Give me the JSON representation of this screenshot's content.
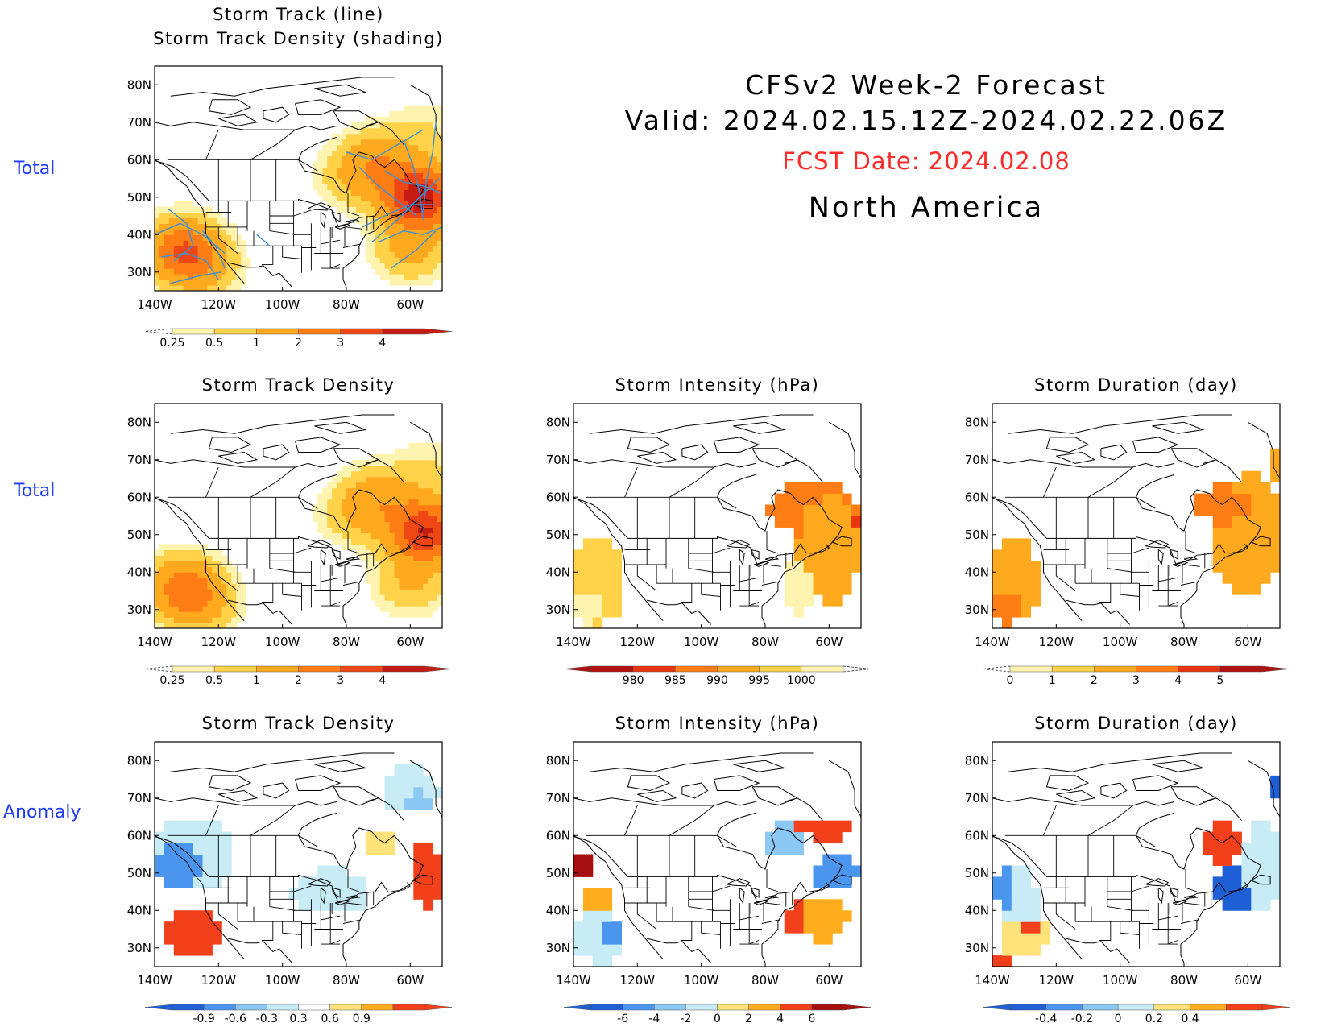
{
  "header": {
    "line1": "CFSv2 Week-2 Forecast",
    "line2": "Valid: 2024.02.15.12Z-2024.02.22.06Z",
    "fcst_date": "FCST Date: 2024.02.08",
    "region": "North America"
  },
  "row_labels": [
    "Total",
    "Total",
    "Anomaly"
  ],
  "colors": {
    "row_label": "#1f3cff",
    "fcst_date": "#ff2a2a",
    "storm_track_line": "#3a8fd6"
  },
  "chart_data": [
    {
      "type": "heatmap",
      "id": "track-total",
      "title": [
        "Storm Track (line)",
        "Storm Track Density (shading)"
      ],
      "xticks": [
        "140W",
        "120W",
        "100W",
        "80W",
        "60W"
      ],
      "yticks": [
        "30N",
        "40N",
        "50N",
        "60N",
        "70N",
        "80N"
      ],
      "xlim": [
        -140,
        -50
      ],
      "ylim": [
        25,
        85
      ],
      "colorbar": {
        "labels": [
          "0.25",
          "0.5",
          "1",
          "2",
          "3",
          "4"
        ],
        "colors": [
          "#fff3b0",
          "#ffd24a",
          "#ffaa1e",
          "#ff7d14",
          "#ee4615",
          "#c41b12"
        ],
        "extend_low": "dashed",
        "extend_high": "triangle"
      },
      "highs": [
        {
          "lon": -57,
          "lat": 50,
          "value": 4.5
        },
        {
          "lon": -70,
          "lat": 60,
          "value": 1.5
        },
        {
          "lon": -78,
          "lat": 55,
          "value": 0.8
        },
        {
          "lon": -131,
          "lat": 36,
          "value": 2.8
        },
        {
          "lon": -125,
          "lat": 31,
          "value": 1.0
        },
        {
          "lon": -60,
          "lat": 36,
          "value": 1.2
        },
        {
          "lon": -55,
          "lat": 68,
          "value": 0.5
        }
      ],
      "tracks": [
        [
          [
            -140,
            40
          ],
          [
            -132,
            43
          ],
          [
            -125,
            40
          ],
          [
            -118,
            35
          ]
        ],
        [
          [
            -138,
            34
          ],
          [
            -130,
            35
          ],
          [
            -124,
            33
          ],
          [
            -120,
            28
          ]
        ],
        [
          [
            -136,
            47
          ],
          [
            -130,
            43
          ],
          [
            -128,
            37
          ],
          [
            -134,
            33
          ]
        ],
        [
          [
            -135,
            27
          ],
          [
            -126,
            29
          ],
          [
            -119,
            30
          ]
        ],
        [
          [
            -125,
            41
          ],
          [
            -121,
            37
          ],
          [
            -118,
            31
          ]
        ],
        [
          [
            -108,
            40
          ],
          [
            -104,
            37
          ]
        ],
        [
          [
            -75,
            42
          ],
          [
            -68,
            45
          ],
          [
            -60,
            48
          ],
          [
            -52,
            48
          ]
        ],
        [
          [
            -72,
            38
          ],
          [
            -64,
            44
          ],
          [
            -57,
            50
          ],
          [
            -51,
            55
          ]
        ],
        [
          [
            -66,
            31
          ],
          [
            -58,
            36
          ],
          [
            -52,
            41
          ]
        ],
        [
          [
            -80,
            62
          ],
          [
            -72,
            60
          ],
          [
            -64,
            64
          ],
          [
            -56,
            68
          ]
        ],
        [
          [
            -68,
            57
          ],
          [
            -62,
            54
          ],
          [
            -56,
            53
          ],
          [
            -50,
            51
          ]
        ],
        [
          [
            -62,
            65
          ],
          [
            -59,
            58
          ],
          [
            -57,
            51
          ],
          [
            -56,
            44
          ]
        ],
        [
          [
            -52,
            70
          ],
          [
            -53,
            62
          ],
          [
            -55,
            54
          ],
          [
            -56,
            46
          ]
        ],
        [
          [
            -76,
            58
          ],
          [
            -70,
            53
          ],
          [
            -64,
            49
          ],
          [
            -58,
            45
          ]
        ],
        [
          [
            -70,
            38
          ],
          [
            -62,
            41
          ],
          [
            -56,
            40
          ],
          [
            -50,
            42
          ]
        ]
      ]
    },
    {
      "type": "heatmap",
      "id": "density-total",
      "title": [
        "Storm Track Density"
      ],
      "xticks": [
        "140W",
        "120W",
        "100W",
        "80W",
        "60W"
      ],
      "yticks": [
        "30N",
        "40N",
        "50N",
        "60N",
        "70N",
        "80N"
      ],
      "xlim": [
        -140,
        -50
      ],
      "ylim": [
        25,
        85
      ],
      "colorbar": {
        "labels": [
          "0.25",
          "0.5",
          "1",
          "2",
          "3",
          "4"
        ],
        "colors": [
          "#fff3b0",
          "#ffd24a",
          "#ffaa1e",
          "#ff7d14",
          "#ee4615",
          "#c41b12"
        ],
        "extend_low": "dashed",
        "extend_high": "triangle"
      },
      "highs": [
        {
          "lon": -55,
          "lat": 51,
          "value": 4.0
        },
        {
          "lon": -70,
          "lat": 60,
          "value": 1.4
        },
        {
          "lon": -78,
          "lat": 55,
          "value": 0.7
        },
        {
          "lon": -131,
          "lat": 36,
          "value": 2.4
        },
        {
          "lon": -125,
          "lat": 31,
          "value": 0.9
        },
        {
          "lon": -60,
          "lat": 37,
          "value": 1.0
        },
        {
          "lon": -54,
          "lat": 68,
          "value": 0.5
        }
      ]
    },
    {
      "type": "heatmap",
      "id": "intensity-total",
      "title": [
        "Storm Intensity (hPa)"
      ],
      "xticks": [
        "140W",
        "120W",
        "100W",
        "80W",
        "60W"
      ],
      "yticks": [
        "30N",
        "40N",
        "50N",
        "60N",
        "70N",
        "80N"
      ],
      "xlim": [
        -140,
        -50
      ],
      "ylim": [
        25,
        85
      ],
      "colorbar": {
        "labels": [
          "980",
          "985",
          "990",
          "995",
          "1000"
        ],
        "colors": [
          "#b30f0f",
          "#e8350f",
          "#ff7d14",
          "#ffaa1e",
          "#ffd24a",
          "#fff3b0"
        ],
        "extend_low": "triangle",
        "extend_high": "dashed"
      },
      "cell_deg": 3,
      "blobs": [
        {
          "lon": -55,
          "lat": 50,
          "rx": 9,
          "ry": 8,
          "level": 1
        },
        {
          "lon": -65,
          "lat": 57,
          "rx": 14,
          "ry": 7,
          "level": 2
        },
        {
          "lon": -60,
          "lat": 46,
          "rx": 10,
          "ry": 14,
          "level": 3
        },
        {
          "lon": -70,
          "lat": 36,
          "rx": 5,
          "ry": 7,
          "level": 5
        },
        {
          "lon": -132,
          "lat": 38,
          "rx": 8,
          "ry": 12,
          "level": 4
        },
        {
          "lon": -136,
          "lat": 30,
          "rx": 5,
          "ry": 4,
          "level": 5
        }
      ]
    },
    {
      "type": "heatmap",
      "id": "duration-total",
      "title": [
        "Storm Duration (day)"
      ],
      "xticks": [
        "140W",
        "120W",
        "100W",
        "80W",
        "60W"
      ],
      "yticks": [
        "30N",
        "40N",
        "50N",
        "60N",
        "70N",
        "80N"
      ],
      "xlim": [
        -140,
        -50
      ],
      "ylim": [
        25,
        85
      ],
      "colorbar": {
        "labels": [
          "0",
          "1",
          "2",
          "3",
          "4",
          "5"
        ],
        "colors": [
          "#fff3b0",
          "#ffd24a",
          "#ffaa1e",
          "#ff7d14",
          "#e8350f",
          "#b30f0f"
        ],
        "extend_low": "dashed",
        "extend_high": "triangle"
      },
      "cell_deg": 3,
      "blobs": [
        {
          "lon": -60,
          "lat": 50,
          "rx": 12,
          "ry": 16,
          "level": 2
        },
        {
          "lon": -68,
          "lat": 58,
          "rx": 9,
          "ry": 5,
          "level": 3
        },
        {
          "lon": -52,
          "lat": 68,
          "rx": 2,
          "ry": 4,
          "level": 2
        },
        {
          "lon": -133,
          "lat": 38,
          "rx": 8,
          "ry": 11,
          "level": 2
        },
        {
          "lon": -136,
          "lat": 30,
          "rx": 5,
          "ry": 4,
          "level": 3
        }
      ]
    },
    {
      "type": "heatmap",
      "id": "density-anomaly",
      "title": [
        "Storm Track Density"
      ],
      "xticks": [
        "140W",
        "120W",
        "100W",
        "80W",
        "60W"
      ],
      "yticks": [
        "30N",
        "40N",
        "50N",
        "60N",
        "70N",
        "80N"
      ],
      "xlim": [
        -140,
        -50
      ],
      "ylim": [
        25,
        85
      ],
      "colorbar": {
        "labels": [
          "-0.9",
          "-0.6",
          "-0.3",
          "0.3",
          "0.6",
          "0.9"
        ],
        "colors": [
          "#1f5fd6",
          "#4a96ef",
          "#8cc8f4",
          "#c7ecf6",
          "#ffffff",
          "#ffe27a",
          "#ffad1f",
          "#f2401a"
        ],
        "extend_low": "triangle",
        "extend_high": "triangle"
      },
      "cell_deg": 3,
      "blobs": [
        {
          "lon": -128,
          "lat": 55,
          "rx": 12,
          "ry": 10,
          "level": 3
        },
        {
          "lon": -133,
          "lat": 52,
          "rx": 7,
          "ry": 6,
          "level": 1
        },
        {
          "lon": -128,
          "lat": 34,
          "rx": 9,
          "ry": 6,
          "level": 7
        },
        {
          "lon": -85,
          "lat": 45,
          "rx": 12,
          "ry": 6,
          "level": 3
        },
        {
          "lon": -60,
          "lat": 72,
          "rx": 9,
          "ry": 6,
          "level": 3
        },
        {
          "lon": -57,
          "lat": 69,
          "rx": 4,
          "ry": 3,
          "level": 2
        },
        {
          "lon": -55,
          "lat": 50,
          "rx": 5,
          "ry": 9,
          "level": 7
        },
        {
          "lon": -70,
          "lat": 58,
          "rx": 6,
          "ry": 3,
          "level": 5
        }
      ]
    },
    {
      "type": "heatmap",
      "id": "intensity-anomaly",
      "title": [
        "Storm Intensity (hPa)"
      ],
      "xticks": [
        "140W",
        "120W",
        "100W",
        "80W",
        "60W"
      ],
      "yticks": [
        "30N",
        "40N",
        "50N",
        "60N",
        "70N",
        "80N"
      ],
      "xlim": [
        -140,
        -50
      ],
      "ylim": [
        25,
        85
      ],
      "colorbar": {
        "labels": [
          "-6",
          "-4",
          "-2",
          "0",
          "2",
          "4",
          "6"
        ],
        "colors": [
          "#1f5fd6",
          "#4a96ef",
          "#8cc8f4",
          "#c7ecf6",
          "#ffe27a",
          "#ffad1f",
          "#f2401a",
          "#a50f0f"
        ],
        "extend_low": "triangle",
        "extend_high": "triangle"
      },
      "cell_deg": 3,
      "blobs": [
        {
          "lon": -61,
          "lat": 62,
          "rx": 9,
          "ry": 3,
          "level": 6
        },
        {
          "lon": -74,
          "lat": 59,
          "rx": 6,
          "ry": 4,
          "level": 2
        },
        {
          "lon": -58,
          "lat": 50,
          "rx": 7,
          "ry": 5,
          "level": 1
        },
        {
          "lon": -62,
          "lat": 38,
          "rx": 8,
          "ry": 6,
          "level": 5
        },
        {
          "lon": -70,
          "lat": 38,
          "rx": 3,
          "ry": 5,
          "level": 6
        },
        {
          "lon": -132,
          "lat": 33,
          "rx": 8,
          "ry": 7,
          "level": 3
        },
        {
          "lon": -128,
          "lat": 34,
          "rx": 3,
          "ry": 3,
          "level": 1
        },
        {
          "lon": -137,
          "lat": 52,
          "rx": 3,
          "ry": 5,
          "level": 7
        },
        {
          "lon": -133,
          "lat": 43,
          "rx": 6,
          "ry": 2,
          "level": 5
        }
      ]
    },
    {
      "type": "heatmap",
      "id": "duration-anomaly",
      "title": [
        "Storm Duration (day)"
      ],
      "xticks": [
        "140W",
        "120W",
        "100W",
        "80W",
        "60W"
      ],
      "yticks": [
        "30N",
        "40N",
        "50N",
        "60N",
        "70N",
        "80N"
      ],
      "xlim": [
        -140,
        -50
      ],
      "ylim": [
        25,
        85
      ],
      "colorbar": {
        "labels": [
          "-0.4",
          "-0.2",
          "0",
          "0.2",
          "0.4"
        ],
        "colors": [
          "#1f5fd6",
          "#4a96ef",
          "#8cc8f4",
          "#c7ecf6",
          "#ffe27a",
          "#ffad1f",
          "#f2401a"
        ],
        "extend_low": "triangle",
        "extend_high": "triangle"
      },
      "cell_deg": 3,
      "blobs": [
        {
          "lon": -68,
          "lat": 58,
          "rx": 7,
          "ry": 5,
          "level": 6
        },
        {
          "lon": -64,
          "lat": 46,
          "rx": 6,
          "ry": 6,
          "level": 0
        },
        {
          "lon": -55,
          "lat": 52,
          "rx": 6,
          "ry": 12,
          "level": 3
        },
        {
          "lon": -52,
          "lat": 72,
          "rx": 2,
          "ry": 3,
          "level": 0
        },
        {
          "lon": -132,
          "lat": 42,
          "rx": 6,
          "ry": 10,
          "level": 3
        },
        {
          "lon": -136,
          "lat": 46,
          "rx": 3,
          "ry": 5,
          "level": 1
        },
        {
          "lon": -130,
          "lat": 33,
          "rx": 8,
          "ry": 5,
          "level": 4
        },
        {
          "lon": -128,
          "lat": 36,
          "rx": 2,
          "ry": 3,
          "level": 6
        },
        {
          "lon": -138,
          "lat": 27,
          "rx": 4,
          "ry": 2,
          "level": 6
        }
      ]
    }
  ]
}
